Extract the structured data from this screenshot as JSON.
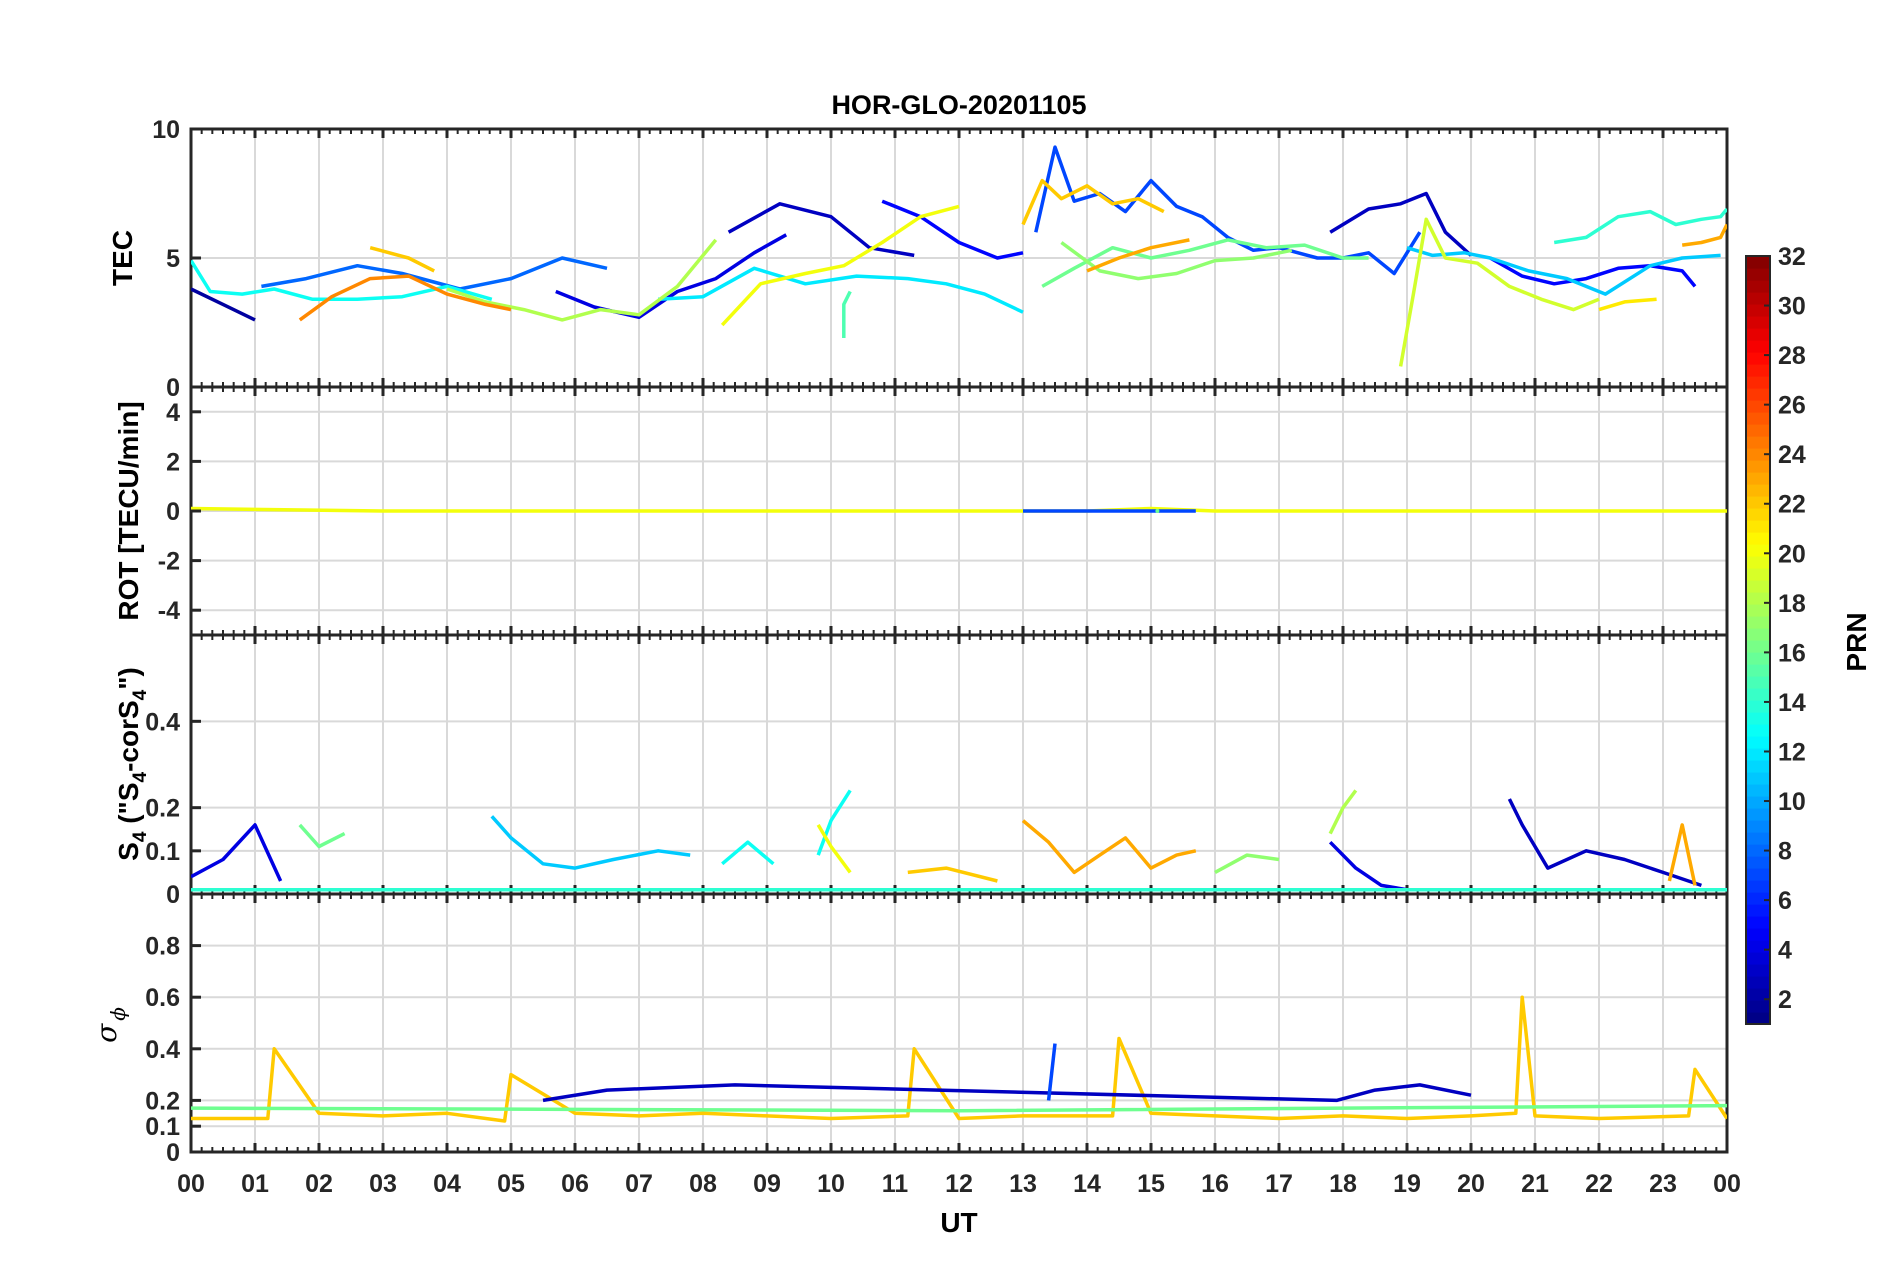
{
  "chart_data": {
    "type": "line",
    "title": "HOR-GLO-20201105",
    "xlabel": "UT",
    "x_ticks": [
      "00",
      "01",
      "02",
      "03",
      "04",
      "05",
      "06",
      "07",
      "08",
      "09",
      "10",
      "11",
      "12",
      "13",
      "14",
      "15",
      "16",
      "17",
      "18",
      "19",
      "20",
      "21",
      "22",
      "23",
      "00"
    ],
    "xlim_hours": [
      0,
      24
    ],
    "grid": true,
    "colormap": "jet",
    "colorbar": {
      "label": "PRN",
      "ticks": [
        "2",
        "4",
        "6",
        "8",
        "10",
        "12",
        "14",
        "16",
        "18",
        "20",
        "22",
        "24",
        "26",
        "28",
        "30",
        "32"
      ],
      "range": [
        1,
        32
      ],
      "placement": "right"
    },
    "panels": [
      {
        "id": "tec",
        "ylabel": "TEC",
        "ylim": [
          0,
          10
        ],
        "y_ticks": [
          "0",
          "5",
          "10"
        ],
        "series": [
          {
            "prn": 2,
            "x": [
              0.0,
              0.5,
              1.0
            ],
            "y": [
              3.8,
              3.2,
              2.6
            ]
          },
          {
            "prn": 4,
            "x": [
              5.7,
              6.3,
              7.0,
              7.6,
              8.2,
              8.8,
              9.3
            ],
            "y": [
              3.7,
              3.1,
              2.7,
              3.7,
              4.2,
              5.2,
              5.9
            ]
          },
          {
            "prn": 3,
            "x": [
              8.4,
              9.2,
              10.0,
              10.6,
              11.3
            ],
            "y": [
              6.0,
              7.1,
              6.6,
              5.4,
              5.1
            ]
          },
          {
            "prn": 5,
            "x": [
              10.8,
              11.4,
              12.0,
              12.6,
              13.0
            ],
            "y": [
              7.2,
              6.6,
              5.6,
              5.0,
              5.2
            ]
          },
          {
            "prn": 7,
            "x": [
              13.2,
              13.5,
              13.8,
              14.2,
              14.6,
              15.0,
              15.4,
              15.8,
              16.2,
              16.6,
              17.0,
              17.6,
              18.0,
              18.4,
              18.8,
              19.2
            ],
            "y": [
              6.0,
              9.3,
              7.2,
              7.5,
              6.8,
              8.0,
              7.0,
              6.6,
              5.8,
              5.3,
              5.4,
              5.0,
              5.0,
              5.2,
              4.4,
              6.0
            ]
          },
          {
            "prn": 3,
            "x": [
              17.8,
              18.4,
              18.9,
              19.3,
              19.6,
              20.0
            ],
            "y": [
              6.0,
              6.9,
              7.1,
              7.5,
              6.0,
              5.1
            ]
          },
          {
            "prn": 5,
            "x": [
              20.3,
              20.8,
              21.3,
              21.8,
              22.3,
              22.8,
              23.3,
              23.5
            ],
            "y": [
              5.0,
              4.3,
              4.0,
              4.2,
              4.6,
              4.7,
              4.5,
              3.9
            ]
          },
          {
            "prn": 8,
            "x": [
              1.1,
              1.8,
              2.6,
              3.3,
              4.2,
              5.0,
              5.8,
              6.5
            ],
            "y": [
              3.9,
              4.2,
              4.7,
              4.4,
              3.8,
              4.2,
              5.0,
              4.6
            ]
          },
          {
            "prn": 12,
            "x": [
              7.3,
              8.0,
              8.8,
              9.6,
              10.4,
              11.2,
              11.8,
              12.4,
              13.0
            ],
            "y": [
              3.4,
              3.5,
              4.6,
              4.0,
              4.3,
              4.2,
              4.0,
              3.6,
              2.9
            ]
          },
          {
            "prn": 11,
            "x": [
              19.0,
              19.4,
              19.9,
              20.3,
              20.9,
              21.5,
              22.1,
              22.8,
              23.3,
              23.9
            ],
            "y": [
              5.4,
              5.1,
              5.2,
              5.0,
              4.5,
              4.2,
              3.6,
              4.7,
              5.0,
              5.1
            ]
          },
          {
            "prn": 13,
            "x": [
              0.0,
              0.3,
              0.8,
              1.3,
              1.9,
              2.6,
              3.3,
              4.0,
              4.7
            ],
            "y": [
              4.9,
              3.7,
              3.6,
              3.8,
              3.4,
              3.4,
              3.5,
              3.9,
              3.4
            ]
          },
          {
            "prn": 14,
            "x": [
              21.3,
              21.8,
              22.3,
              22.8,
              23.2,
              23.6,
              23.9,
              24.0
            ],
            "y": [
              5.6,
              5.8,
              6.6,
              6.8,
              6.3,
              6.5,
              6.6,
              6.9
            ]
          },
          {
            "prn": 15,
            "x": [
              10.2,
              10.2,
              10.3
            ],
            "y": [
              1.9,
              3.2,
              3.7
            ]
          },
          {
            "prn": 16,
            "x": [
              13.3,
              13.8,
              14.4,
              15.0,
              15.6,
              16.2,
              16.8,
              17.4,
              18.0,
              18.4
            ],
            "y": [
              3.9,
              4.6,
              5.4,
              5.0,
              5.3,
              5.7,
              5.4,
              5.5,
              5.0,
              5.0
            ]
          },
          {
            "prn": 17,
            "x": [
              13.6,
              14.2,
              14.8,
              15.4,
              16.0,
              16.6,
              17.2
            ],
            "y": [
              5.6,
              4.5,
              4.2,
              4.4,
              4.9,
              5.0,
              5.3
            ]
          },
          {
            "prn": 18,
            "x": [
              4.0,
              4.6,
              5.2,
              5.8,
              6.4,
              7.0,
              7.6,
              8.2
            ],
            "y": [
              3.8,
              3.3,
              3.0,
              2.6,
              3.0,
              2.8,
              3.9,
              5.7
            ]
          },
          {
            "prn": 19,
            "x": [
              18.9,
              19.1,
              19.3,
              19.6,
              20.1,
              20.6,
              21.1,
              21.6,
              22.0
            ],
            "y": [
              0.8,
              3.6,
              6.5,
              5.0,
              4.8,
              3.9,
              3.4,
              3.0,
              3.4
            ]
          },
          {
            "prn": 20,
            "x": [
              8.3,
              8.9,
              9.6,
              10.2,
              10.8,
              11.4,
              12.0
            ],
            "y": [
              2.4,
              4.0,
              4.4,
              4.7,
              5.6,
              6.6,
              7.0
            ]
          },
          {
            "prn": 22,
            "x": [
              13.0,
              13.3,
              13.6,
              14.0,
              14.4,
              14.8,
              15.2
            ],
            "y": [
              6.3,
              8.0,
              7.3,
              7.8,
              7.1,
              7.3,
              6.8
            ]
          },
          {
            "prn": 23,
            "x": [
              14.0,
              14.5,
              15.0,
              15.6
            ],
            "y": [
              4.5,
              5.0,
              5.4,
              5.7
            ]
          },
          {
            "prn": 24,
            "x": [
              1.7,
              2.2,
              2.8,
              3.4,
              4.0,
              4.6,
              5.0
            ],
            "y": [
              2.6,
              3.5,
              4.2,
              4.3,
              3.6,
              3.2,
              3.0
            ]
          },
          {
            "prn": 22,
            "x": [
              2.8,
              3.4,
              3.8
            ],
            "y": [
              5.4,
              5.0,
              4.5
            ]
          },
          {
            "prn": 21,
            "x": [
              22.0,
              22.4,
              22.9
            ],
            "y": [
              3.0,
              3.3,
              3.4
            ]
          },
          {
            "prn": 23,
            "x": [
              23.3,
              23.6,
              23.9,
              24.0
            ],
            "y": [
              5.5,
              5.6,
              5.8,
              6.3
            ]
          }
        ]
      },
      {
        "id": "rot",
        "ylabel": "ROT [TECU/min]",
        "ylim": [
          -5,
          5
        ],
        "y_ticks": [
          "-4",
          "-2",
          "0",
          "2",
          "4"
        ],
        "series": [
          {
            "prn": 20,
            "x": [
              0.0,
              3.0,
              6.0,
              9.0,
              12.0,
              13.0,
              14.0,
              15.0,
              16.0,
              17.0,
              18.0,
              19.0,
              20.0,
              21.0,
              22.0,
              23.0,
              24.0
            ],
            "y": [
              0.1,
              0.0,
              0.0,
              0.0,
              0.0,
              0.0,
              0.0,
              0.1,
              0.0,
              0.0,
              0.0,
              0.0,
              0.0,
              0.0,
              0.0,
              0.0,
              0.0
            ]
          },
          {
            "prn": 7,
            "x": [
              13.0,
              14.0,
              15.0,
              15.7
            ],
            "y": [
              0.0,
              0.0,
              0.0,
              0.0
            ]
          },
          {
            "prn": 16,
            "x": [
              15.1
            ],
            "y": [
              0.0
            ]
          }
        ]
      },
      {
        "id": "s4",
        "ylabel": "S4 (\"S4-corS4\")",
        "ylim": [
          0,
          0.6
        ],
        "y_ticks": [
          "0",
          "0.1",
          "0.2",
          "0.4"
        ],
        "series": [
          {
            "prn": 4,
            "x": [
              0.0,
              0.5,
              1.0,
              1.4
            ],
            "y": [
              0.04,
              0.08,
              0.16,
              0.03
            ]
          },
          {
            "prn": 16,
            "x": [
              1.7,
              2.0,
              2.4
            ],
            "y": [
              0.16,
              0.11,
              0.14
            ]
          },
          {
            "prn": 11,
            "x": [
              4.7,
              5.0,
              5.5,
              6.0,
              6.6,
              7.3,
              7.8
            ],
            "y": [
              0.18,
              0.13,
              0.07,
              0.06,
              0.08,
              0.1,
              0.09
            ]
          },
          {
            "prn": 13,
            "x": [
              8.3,
              8.7,
              9.1
            ],
            "y": [
              0.07,
              0.12,
              0.07
            ]
          },
          {
            "prn": 13,
            "x": [
              9.8,
              10.0,
              10.3
            ],
            "y": [
              0.09,
              0.17,
              0.24
            ]
          },
          {
            "prn": 20,
            "x": [
              9.8,
              10.0,
              10.3
            ],
            "y": [
              0.16,
              0.11,
              0.05
            ]
          },
          {
            "prn": 22,
            "x": [
              11.2,
              11.8,
              12.6
            ],
            "y": [
              0.05,
              0.06,
              0.03
            ]
          },
          {
            "prn": 23,
            "x": [
              13.0,
              13.4,
              13.8,
              14.2,
              14.6,
              15.0,
              15.4,
              15.7
            ],
            "y": [
              0.17,
              0.12,
              0.05,
              0.09,
              0.13,
              0.06,
              0.09,
              0.1
            ]
          },
          {
            "prn": 17,
            "x": [
              16.0,
              16.5,
              17.0
            ],
            "y": [
              0.05,
              0.09,
              0.08
            ]
          },
          {
            "prn": 18,
            "x": [
              17.8,
              18.0,
              18.2
            ],
            "y": [
              0.14,
              0.2,
              0.24
            ]
          },
          {
            "prn": 4,
            "x": [
              17.8,
              18.2,
              18.6,
              19.0
            ],
            "y": [
              0.12,
              0.06,
              0.02,
              0.01
            ]
          },
          {
            "prn": 3,
            "x": [
              20.6,
              20.8,
              21.2,
              21.8,
              22.4,
              23.0,
              23.6
            ],
            "y": [
              0.22,
              0.16,
              0.06,
              0.1,
              0.08,
              0.05,
              0.02
            ]
          },
          {
            "prn": 23,
            "x": [
              23.1,
              23.3,
              23.5
            ],
            "y": [
              0.03,
              0.16,
              0.02
            ]
          },
          {
            "prn": 14,
            "x": [
              0.0,
              6.0,
              12.0,
              18.0,
              24.0
            ],
            "y": [
              0.01,
              0.01,
              0.01,
              0.01,
              0.01
            ]
          }
        ]
      },
      {
        "id": "sigma",
        "ylabel": "σ φ",
        "ylim": [
          0,
          1
        ],
        "y_ticks": [
          "0",
          "0.1",
          "0.2",
          "0.4",
          "0.6",
          "0.8"
        ],
        "series": [
          {
            "prn": 22,
            "x": [
              0.0,
              1.2,
              1.3,
              2.0,
              3.0,
              4.0,
              4.9,
              5.0,
              6.0,
              7.0,
              8.0,
              9.0,
              10.0,
              11.2,
              11.3,
              12.0,
              13.0,
              14.4,
              14.5,
              15.0,
              16.0,
              17.0,
              18.0,
              19.0,
              20.0,
              20.7,
              20.8,
              21.0,
              22.0,
              23.4,
              23.5,
              24.0
            ],
            "y": [
              0.13,
              0.13,
              0.4,
              0.15,
              0.14,
              0.15,
              0.12,
              0.3,
              0.15,
              0.14,
              0.15,
              0.14,
              0.13,
              0.14,
              0.4,
              0.13,
              0.14,
              0.14,
              0.44,
              0.15,
              0.14,
              0.13,
              0.14,
              0.13,
              0.14,
              0.15,
              0.6,
              0.14,
              0.13,
              0.14,
              0.32,
              0.13
            ]
          },
          {
            "prn": 3,
            "x": [
              5.5,
              6.5,
              7.5,
              8.5,
              17.9,
              18.5,
              19.2,
              20.0
            ],
            "y": [
              0.2,
              0.24,
              0.25,
              0.26,
              0.2,
              0.24,
              0.26,
              0.22
            ]
          },
          {
            "prn": 7,
            "x": [
              13.4,
              13.5
            ],
            "y": [
              0.2,
              0.42
            ]
          },
          {
            "prn": 16,
            "x": [
              0.0,
              12.0,
              24.0
            ],
            "y": [
              0.17,
              0.16,
              0.18
            ]
          }
        ]
      }
    ]
  }
}
